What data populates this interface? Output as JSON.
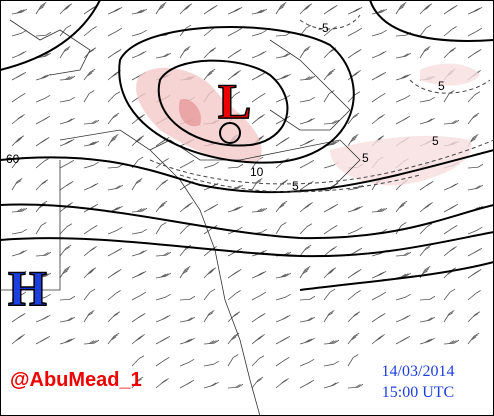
{
  "map": {
    "low_label": "L",
    "high_label": "H",
    "contour_labels": [
      "60",
      "-5",
      "5",
      "5",
      "5",
      "10",
      "5"
    ],
    "credit": "@AbuMead_1",
    "date": "14/03/2014",
    "time": "15:00 UTC"
  }
}
